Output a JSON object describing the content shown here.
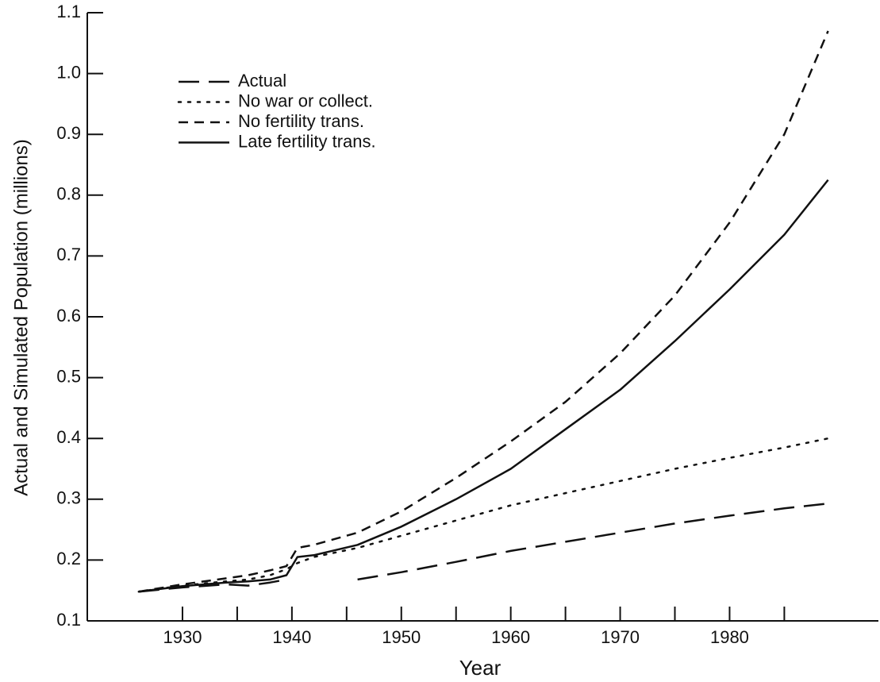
{
  "chart_data": {
    "type": "line",
    "xlabel": "Year",
    "ylabel": "Actual and Simulated Population (millions)",
    "x": [
      1926,
      1930,
      1934,
      1936,
      1938,
      1939.5,
      1940.5,
      1942,
      1946,
      1950,
      1955,
      1960,
      1965,
      1970,
      1975,
      1980,
      1985,
      1989
    ],
    "series": [
      {
        "name": "Actual",
        "color": "#111111",
        "style": "long-dash",
        "values": [
          0.148,
          0.155,
          0.16,
          0.158,
          0.163,
          0.168,
          null,
          null,
          0.168,
          0.18,
          0.197,
          0.215,
          0.23,
          0.245,
          0.26,
          0.273,
          0.285,
          0.293
        ]
      },
      {
        "name": "No war or collect.",
        "color": "#111111",
        "style": "dotted",
        "values": [
          0.148,
          0.158,
          0.165,
          0.168,
          0.175,
          0.185,
          0.195,
          0.205,
          0.22,
          0.24,
          0.265,
          0.29,
          0.31,
          0.33,
          0.35,
          0.368,
          0.385,
          0.4
        ]
      },
      {
        "name": "No fertility trans.",
        "color": "#111111",
        "style": "dashed",
        "values": [
          0.148,
          0.16,
          0.17,
          0.175,
          0.183,
          0.19,
          0.22,
          0.225,
          0.245,
          0.28,
          0.335,
          0.395,
          0.46,
          0.54,
          0.635,
          0.755,
          0.9,
          1.07
        ]
      },
      {
        "name": "Late fertility trans.",
        "color": "#111111",
        "style": "solid",
        "values": [
          0.148,
          0.157,
          0.163,
          0.165,
          0.168,
          0.175,
          0.205,
          0.208,
          0.225,
          0.255,
          0.3,
          0.35,
          0.415,
          0.48,
          0.56,
          0.645,
          0.735,
          0.825
        ]
      }
    ],
    "xlim": [
      1921.3,
      1993.6
    ],
    "xticks": [
      1930,
      1940,
      1950,
      1960,
      1970,
      1980
    ],
    "xminor_ticks": [
      1935,
      1945,
      1955,
      1965,
      1975,
      1985
    ],
    "ylim": [
      0.1,
      1.1
    ],
    "yticks": [
      0.1,
      0.2,
      0.3,
      0.4,
      0.5,
      0.6,
      0.7,
      0.8,
      0.9,
      {
        "value": 1,
        "label": "1.0"
      },
      1.1
    ],
    "legend": "upper left",
    "grid": false
  }
}
